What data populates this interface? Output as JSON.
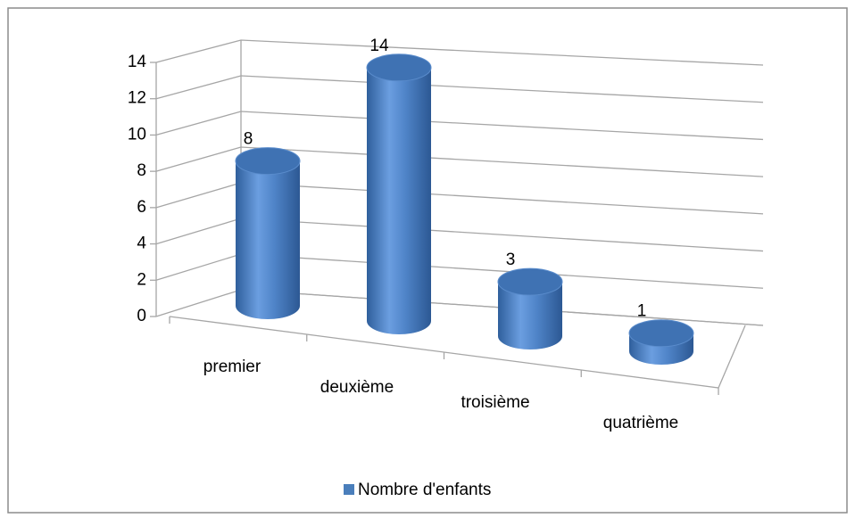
{
  "chart_data": {
    "type": "bar",
    "three_d": true,
    "categories": [
      "premier",
      "deuxième",
      "troisième",
      "quatrième"
    ],
    "series": [
      {
        "name": "Nombre d'enfants",
        "color": "#4a7ebb",
        "values": [
          8,
          14,
          3,
          1
        ]
      }
    ],
    "ylim": [
      0,
      14
    ],
    "yticks": [
      0,
      2,
      4,
      6,
      8,
      10,
      12,
      14
    ],
    "grid": true,
    "legend": "bottom"
  }
}
